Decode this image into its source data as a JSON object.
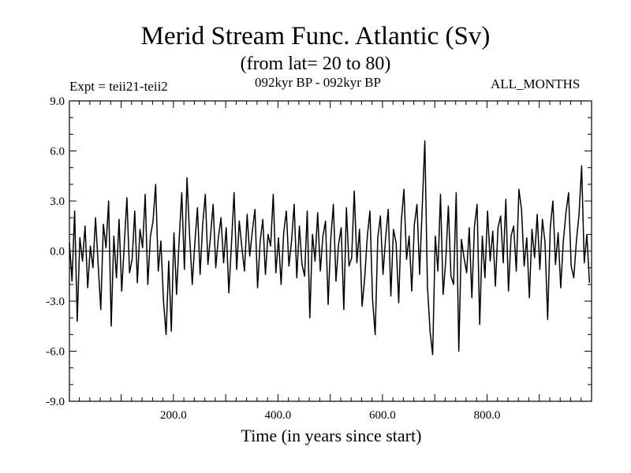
{
  "header": {
    "title": "Merid Stream Func. Atlantic (Sv)",
    "subtitle": "(from lat= 20 to 80)",
    "experiment": "Expt = teii21-teii2",
    "period": "092kyr BP - 092kyr BP",
    "months": "ALL_MONTHS"
  },
  "chart_data": {
    "type": "line",
    "title": "Merid Stream Func. Atlantic (Sv)",
    "subtitle": "(from lat= 20 to 80)",
    "xlabel": "Time (in years since start)",
    "ylabel": "",
    "xlim": [
      1,
      1000
    ],
    "ylim": [
      -9.0,
      9.0
    ],
    "x_ticks": [
      200,
      400,
      600,
      800
    ],
    "x_tick_labels": [
      "200.0",
      "400.0",
      "600.0",
      "800.0"
    ],
    "y_ticks": [
      -9,
      -6,
      -3,
      0,
      3,
      6,
      9
    ],
    "y_tick_labels": [
      "-9.0",
      "-6.0",
      "-3.0",
      "0.0",
      "3.0",
      "6.0",
      "9.0"
    ],
    "zero_line": true,
    "grid": false,
    "series": [
      {
        "x_start": 1,
        "x_step": 5,
        "values": [
          0.5,
          -1.8,
          2.4,
          -4.2,
          0.8,
          -0.6,
          1.5,
          -2.2,
          0.3,
          -1.0,
          2.0,
          -0.8,
          -3.5,
          1.6,
          0.2,
          3.0,
          -4.5,
          0.9,
          -1.6,
          1.9,
          -2.4,
          0.4,
          3.2,
          -1.3,
          -0.5,
          2.4,
          -1.9,
          1.3,
          0.2,
          3.4,
          -2.0,
          0.9,
          1.8,
          4.0,
          -1.2,
          0.6,
          -3.0,
          -5.0,
          -0.6,
          -4.8,
          1.1,
          -2.6,
          0.7,
          3.5,
          -1.1,
          4.4,
          0.9,
          -2.0,
          0.5,
          2.6,
          -1.4,
          1.6,
          3.4,
          -0.8,
          0.9,
          2.8,
          -1.0,
          0.8,
          2.0,
          -0.7,
          1.4,
          -2.5,
          0.4,
          3.5,
          -1.1,
          1.8,
          0.2,
          -1.2,
          2.2,
          -0.3,
          1.2,
          2.5,
          -2.2,
          0.6,
          1.9,
          -1.4,
          1.0,
          0.3,
          3.4,
          -1.3,
          0.8,
          -2.0,
          1.1,
          2.4,
          -0.9,
          0.6,
          2.8,
          -1.6,
          1.5,
          -0.8,
          -1.5,
          2.4,
          -4.0,
          1.0,
          -0.6,
          2.3,
          -1.2,
          0.9,
          1.8,
          -3.2,
          0.7,
          2.8,
          -1.8,
          0.4,
          1.4,
          -3.5,
          2.6,
          -0.9,
          -0.4,
          3.6,
          -0.7,
          1.3,
          -3.3,
          -1.6,
          0.9,
          2.4,
          -2.9,
          -5.0,
          0.8,
          2.1,
          -1.4,
          0.8,
          2.5,
          -2.7,
          1.3,
          0.5,
          -3.1,
          1.8,
          3.7,
          -0.5,
          0.9,
          -2.4,
          1.6,
          2.8,
          -1.4,
          2.6,
          6.6,
          -2.1,
          -4.8,
          -6.2,
          0.9,
          -1.2,
          3.4,
          -2.6,
          -0.6,
          2.7,
          -1.5,
          -2.0,
          3.5,
          -6.0,
          0.7,
          -0.4,
          -1.3,
          1.4,
          -2.8,
          1.5,
          2.8,
          -4.4,
          0.9,
          -1.6,
          2.4,
          -0.6,
          1.2,
          -2.1,
          1.4,
          2.1,
          -0.7,
          3.1,
          -2.4,
          0.9,
          1.5,
          -1.2,
          3.7,
          2.5,
          -0.9,
          0.8,
          -2.8,
          1.3,
          -0.4,
          2.2,
          -1.1,
          1.9,
          0.5,
          -4.1,
          1.4,
          3.0,
          -0.8,
          1.1,
          -2.2,
          0.6,
          2.3,
          3.5,
          -0.9,
          -1.6,
          0.6,
          2.2,
          5.1,
          -0.7,
          1.0,
          -1.9
        ]
      }
    ]
  }
}
